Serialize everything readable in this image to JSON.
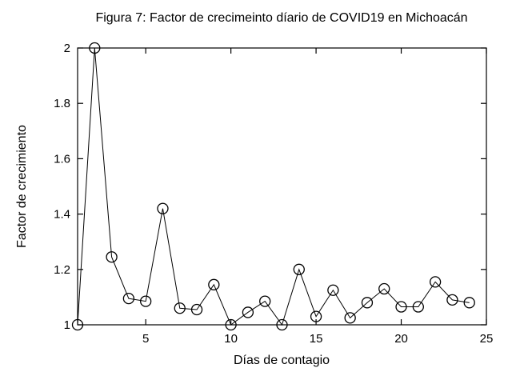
{
  "figure": {
    "title": "Figura 7: Factor de crecimeinto díario de COVID19 en Michoacán",
    "xlabel": "Días de contagio",
    "ylabel": "Factor de crecimiento"
  },
  "chart_data": {
    "type": "line",
    "title": "Figura 7: Factor de crecimeinto díario de COVID19 en Michoacán",
    "xlabel": "Días de contagio",
    "ylabel": "Factor de crecimiento",
    "x": [
      1,
      2,
      3,
      4,
      5,
      6,
      7,
      8,
      9,
      10,
      11,
      12,
      13,
      14,
      15,
      16,
      17,
      18,
      19,
      20,
      21,
      22,
      23,
      24
    ],
    "y": [
      1.0,
      2.0,
      1.245,
      1.095,
      1.085,
      1.42,
      1.06,
      1.055,
      1.145,
      1.0,
      1.045,
      1.085,
      1.0,
      1.2,
      1.03,
      1.125,
      1.025,
      1.08,
      1.13,
      1.065,
      1.065,
      1.155,
      1.09,
      1.08
    ],
    "xlim": [
      1,
      25
    ],
    "ylim": [
      1,
      2
    ],
    "xticks": [
      5,
      10,
      15,
      20,
      25
    ],
    "xtick_labels": [
      "5",
      "10",
      "15",
      "20",
      "25"
    ],
    "yticks": [
      1,
      1.2,
      1.4,
      1.6,
      1.8,
      2
    ],
    "ytick_labels": [
      "1",
      "1.2",
      "1.4",
      "1.6",
      "1.8",
      "2"
    ],
    "grid": false,
    "legend": null,
    "marker": "open-circle",
    "marker_radius": 6.5,
    "line_color": "#000000",
    "axis_color": "#000000",
    "background": "#ffffff"
  }
}
